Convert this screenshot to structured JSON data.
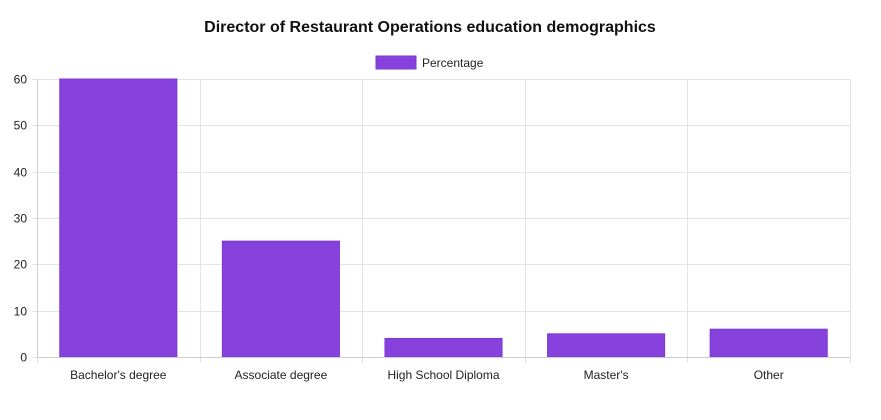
{
  "chart_data": {
    "type": "bar",
    "title": "Director of Restaurant Operations education demographics",
    "xlabel": "",
    "ylabel": "",
    "categories": [
      "Bachelor's degree",
      "Associate degree",
      "High School Diploma",
      "Master's",
      "Other"
    ],
    "series": [
      {
        "name": "Percentage",
        "values": [
          60,
          25,
          4,
          5,
          6
        ],
        "color": "#8741dc"
      }
    ],
    "ylim": [
      0,
      60
    ],
    "yticks": [
      0,
      10,
      20,
      30,
      40,
      50,
      60
    ],
    "grid": true,
    "legend": "top-center"
  }
}
